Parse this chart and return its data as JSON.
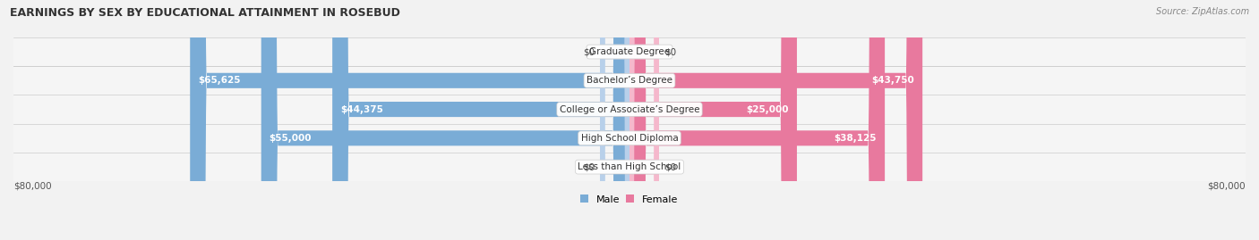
{
  "title": "EARNINGS BY SEX BY EDUCATIONAL ATTAINMENT IN ROSEBUD",
  "source": "Source: ZipAtlas.com",
  "categories": [
    "Less than High School",
    "High School Diploma",
    "College or Associate’s Degree",
    "Bachelor’s Degree",
    "Graduate Degree"
  ],
  "male_values": [
    0,
    55000,
    44375,
    65625,
    0
  ],
  "female_values": [
    0,
    38125,
    25000,
    43750,
    0
  ],
  "male_labels": [
    "$0",
    "$55,000",
    "$44,375",
    "$65,625",
    "$0"
  ],
  "female_labels": [
    "$0",
    "$38,125",
    "$25,000",
    "$43,750",
    "$0"
  ],
  "male_color": "#7aacd6",
  "female_color": "#e8799e",
  "male_color_light": "#b8d0ea",
  "female_color_light": "#f5b8cc",
  "max_value": 80000,
  "axis_label_left": "$80,000",
  "axis_label_right": "$80,000",
  "row_colors": [
    "#f0f0f0",
    "#e8e8e8"
  ],
  "title_fontsize": 9,
  "bar_height": 0.52,
  "figsize": [
    14.06,
    2.69
  ],
  "dpi": 100
}
